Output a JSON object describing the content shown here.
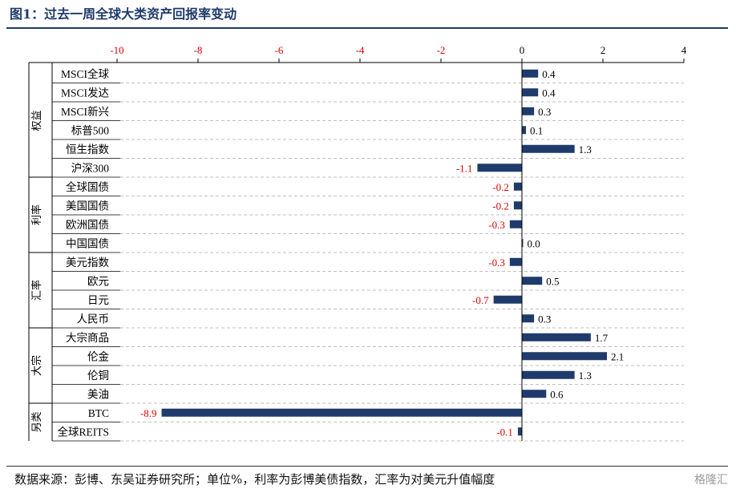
{
  "figure": {
    "title": "图1：过去一周全球大类资产回报率变动",
    "source": "数据来源：彭博、东吴证券研究所；单位%，利率为彭博美债指数，汇率为对美元升值幅度",
    "watermark": "格隆汇"
  },
  "chart_data": {
    "type": "bar",
    "orientation": "horizontal",
    "xlim": [
      -10,
      4
    ],
    "xticks": [
      -10,
      -8,
      -6,
      -4,
      -2,
      0,
      2,
      4
    ],
    "categories": [
      "MSCI全球",
      "MSCI发达",
      "MSCI新兴",
      "标普500",
      "恒生指数",
      "沪深300",
      "全球国债",
      "美国国债",
      "欧洲国债",
      "中国国债",
      "美元指数",
      "欧元",
      "日元",
      "人民币",
      "大宗商品",
      "伦金",
      "伦铜",
      "美油",
      "BTC",
      "全球REITS"
    ],
    "values": [
      0.4,
      0.4,
      0.3,
      0.1,
      1.3,
      -1.1,
      -0.2,
      -0.2,
      -0.3,
      0.0,
      -0.3,
      0.5,
      -0.7,
      0.3,
      1.7,
      2.1,
      1.3,
      0.6,
      -8.9,
      -0.1
    ],
    "value_labels": [
      "0.4",
      "0.4",
      "0.3",
      "0.1",
      "1.3",
      "-1.1",
      "-0.2",
      "-0.2",
      "-0.3",
      "0.0",
      "-0.3",
      "0.5",
      "-0.7",
      "0.3",
      "1.7",
      "2.1",
      "1.3",
      "0.6",
      "-8.9",
      "-0.1"
    ],
    "groups": [
      {
        "label": "权益",
        "count": 6
      },
      {
        "label": "利率",
        "count": 4
      },
      {
        "label": "汇率",
        "count": 4
      },
      {
        "label": "大宗",
        "count": 4
      },
      {
        "label": "另类",
        "count": 2
      }
    ],
    "grid": "horizontal dashed",
    "colors": {
      "bar": "#1f3b6b",
      "negative_label": "#e00000",
      "positive_label": "#000000",
      "tick_label": "#e00000"
    }
  }
}
